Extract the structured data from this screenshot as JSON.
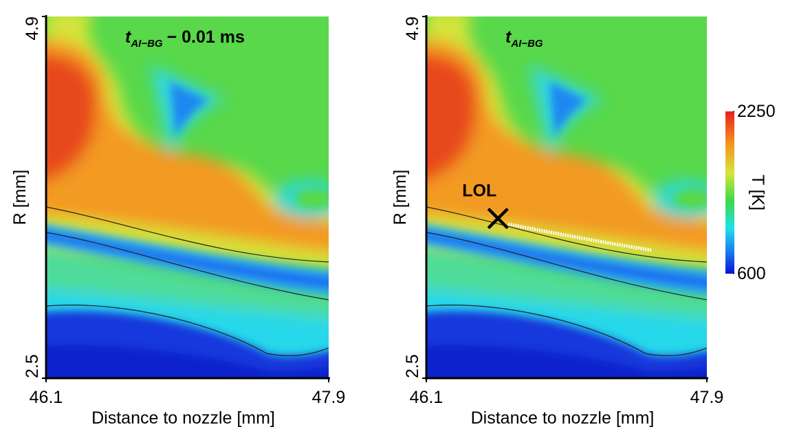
{
  "chart_data": [
    {
      "type": "heatmap",
      "title": {
        "text": "t",
        "subscript": "AI−BG",
        "suffix": "− 0.01 ms"
      },
      "xlabel": "Distance to nozzle [mm]",
      "ylabel": "R [mm]",
      "xlim": [
        46.1,
        47.9
      ],
      "xticks": [
        46.1,
        47.9
      ],
      "ylim": [
        2.5,
        4.9
      ],
      "yticks": [
        2.5,
        4.9
      ]
    },
    {
      "type": "heatmap",
      "title": {
        "text": "t",
        "subscript": "AI−BG"
      },
      "xlabel": "Distance to nozzle [mm]",
      "ylabel": "R [mm]",
      "xlim": [
        46.1,
        47.9
      ],
      "xticks": [
        46.1,
        47.9
      ],
      "ylim": [
        2.5,
        4.9
      ],
      "yticks": [
        2.5,
        4.9
      ],
      "annotation": {
        "text": "LOL",
        "x": 46.56,
        "y": 3.56
      },
      "colorbar": {
        "label": "T [K]",
        "lim": [
          600,
          2250
        ],
        "ticks": [
          600,
          2250
        ]
      }
    }
  ]
}
